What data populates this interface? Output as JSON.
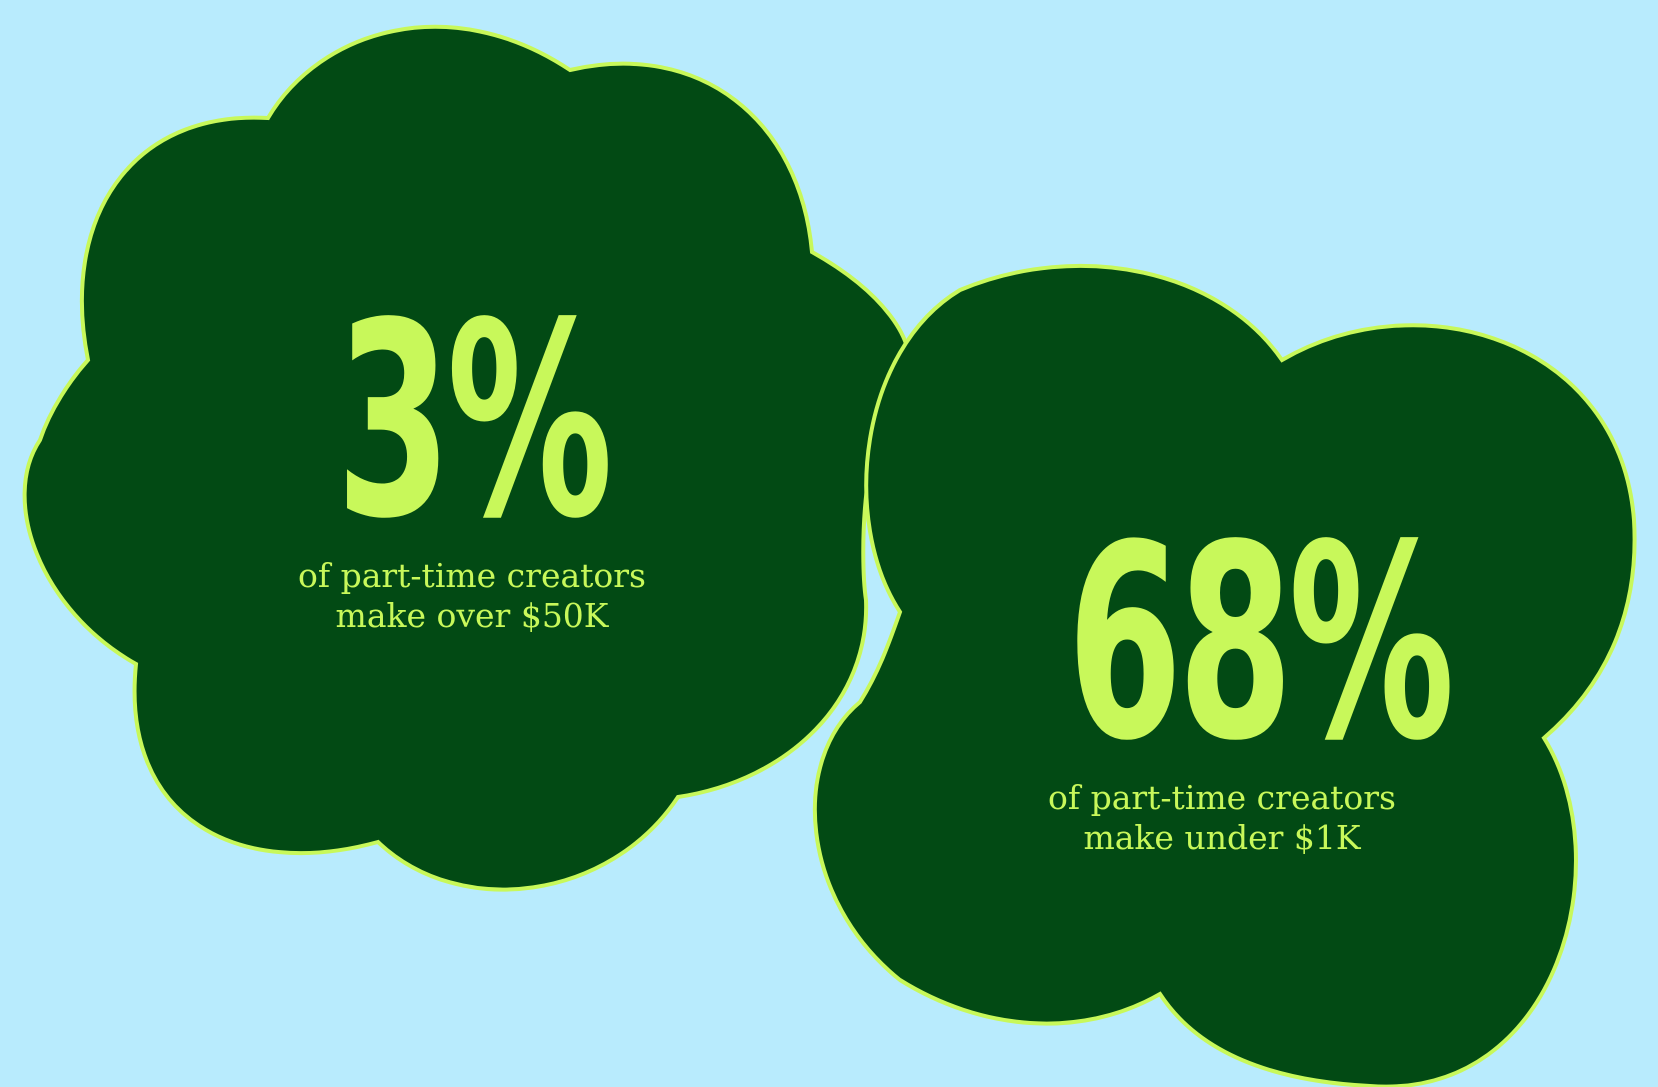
{
  "colors": {
    "background": "#b8ebfd",
    "blob_fill": "#024a14",
    "blob_outline": "#c8f85a",
    "text": "#c8f85a"
  },
  "stats": [
    {
      "value": "3%",
      "caption_line1": "of part-time creators",
      "caption_line2": "make over $50K"
    },
    {
      "value": "68%",
      "caption_line1": "of part-time creators",
      "caption_line2": "make under $1K"
    }
  ]
}
